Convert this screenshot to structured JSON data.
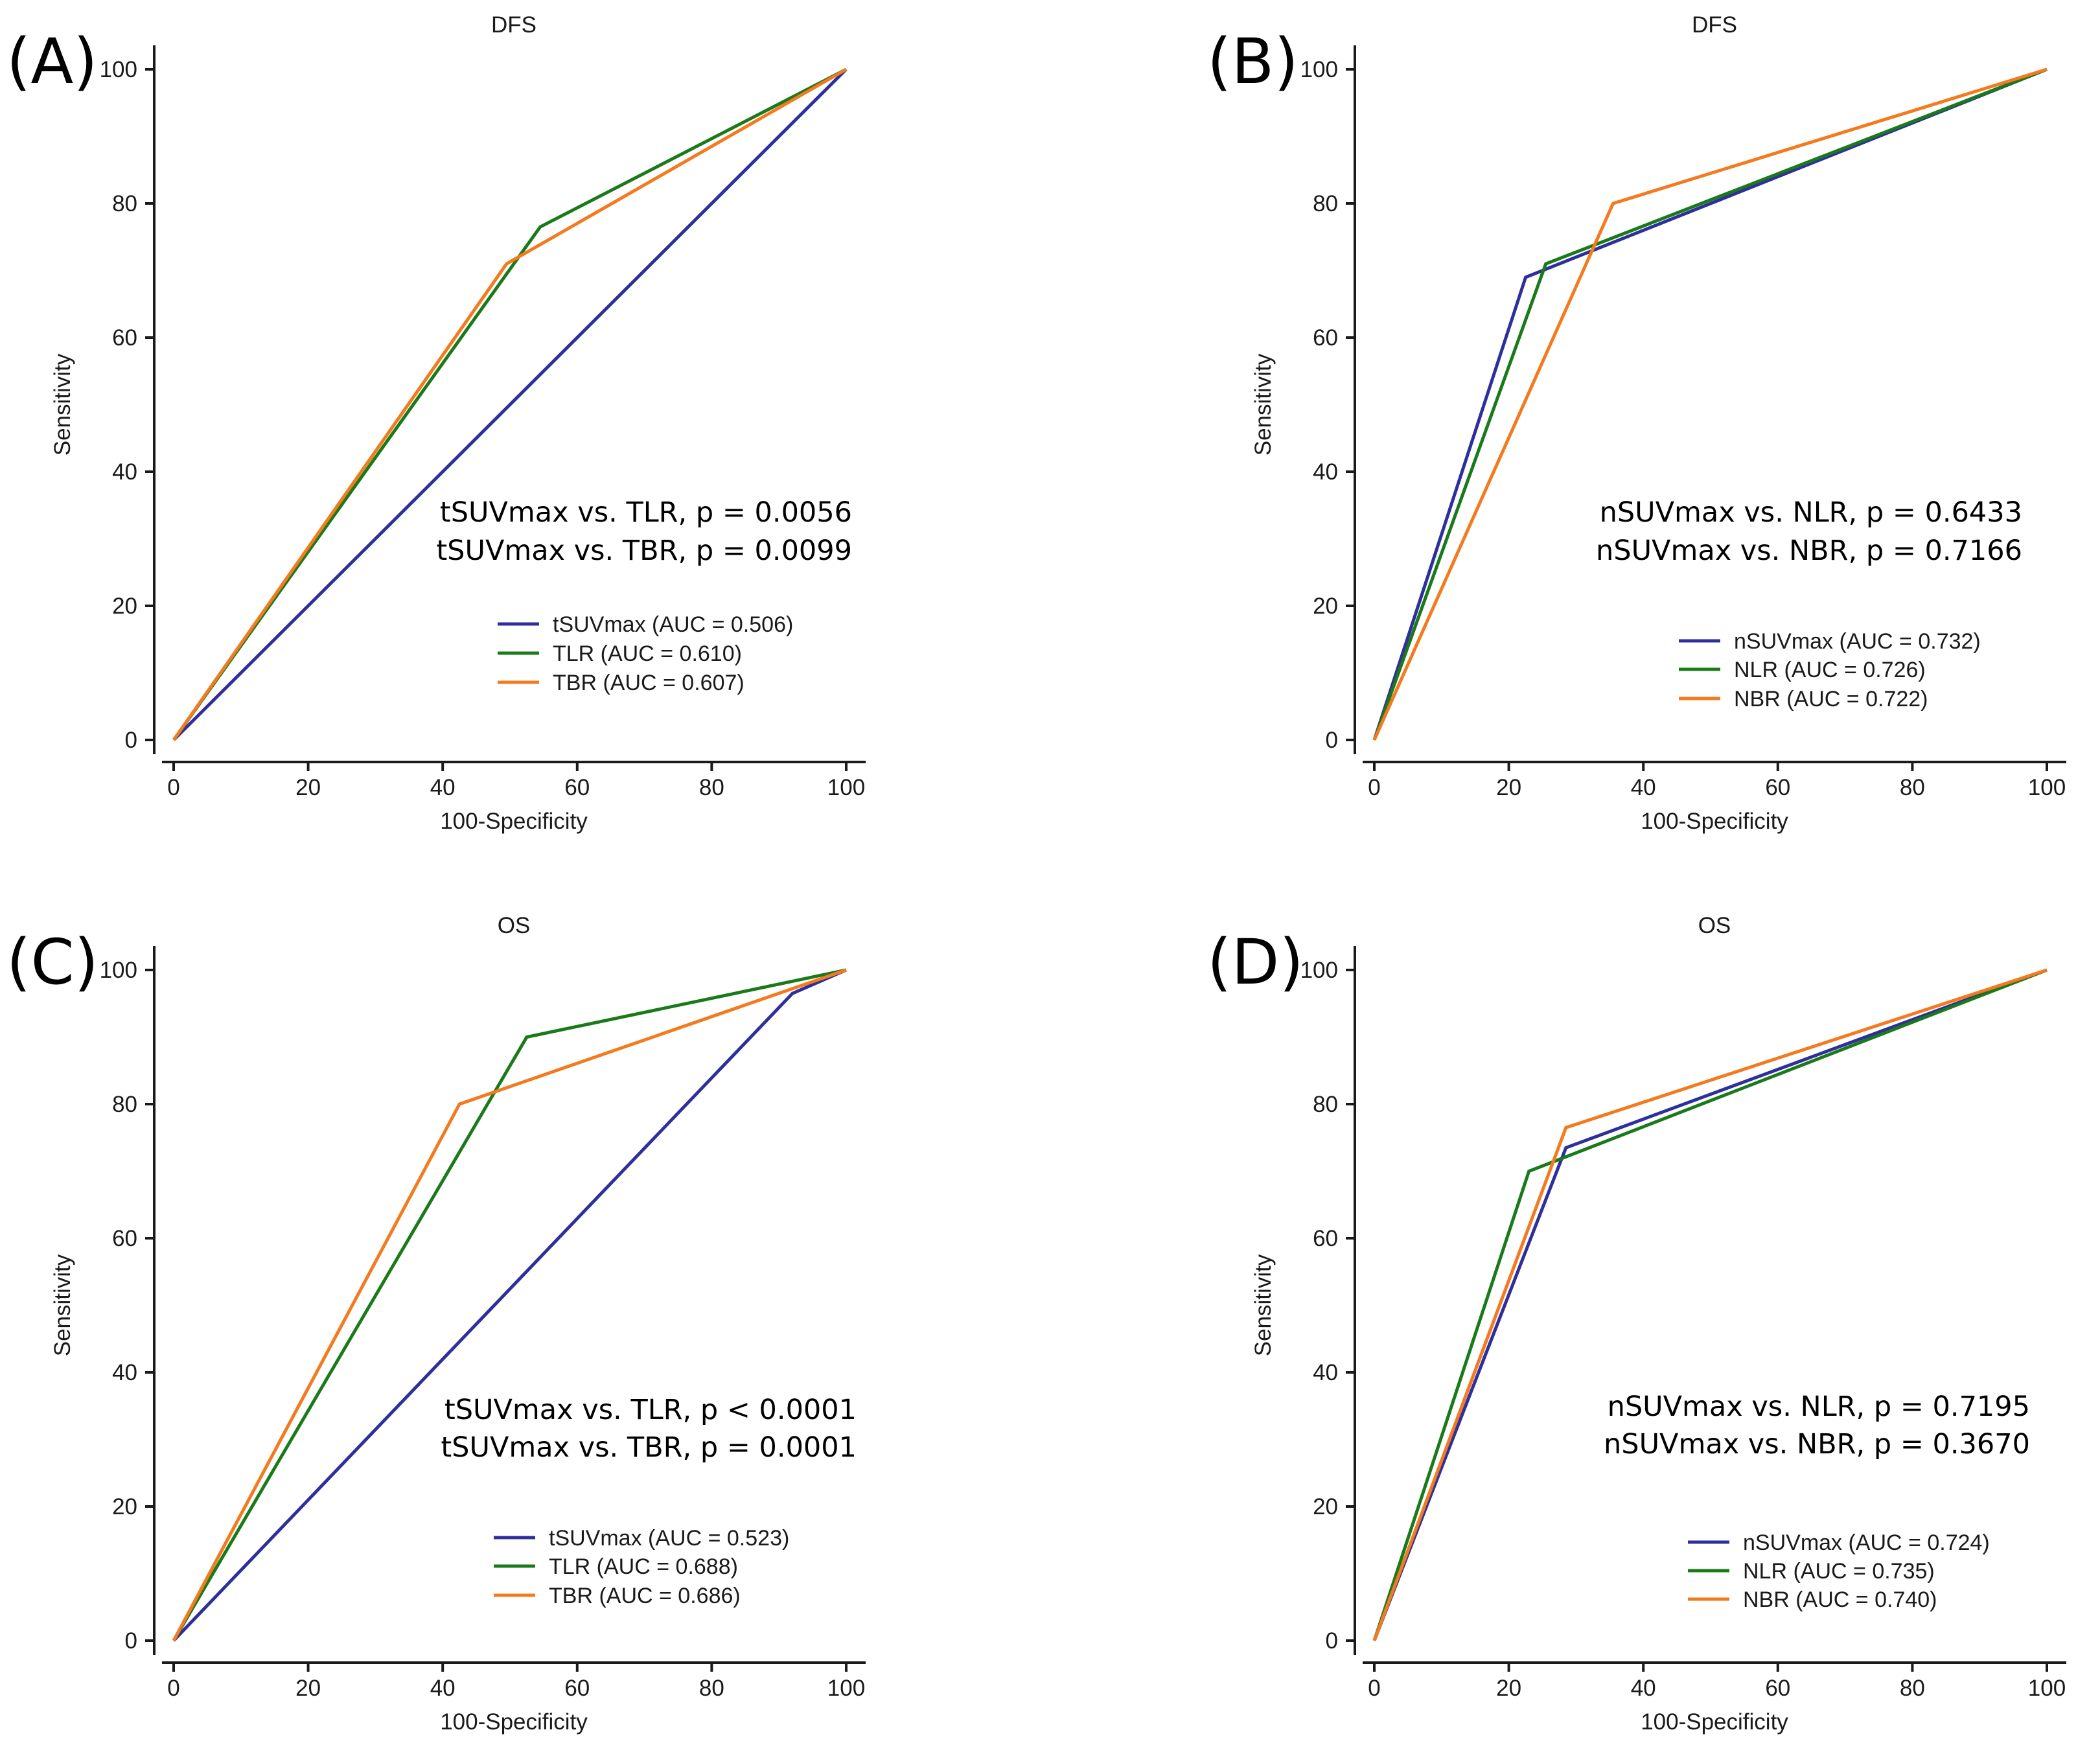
{
  "colors": {
    "blue": "#2f2f9c",
    "green": "#1a7a1a",
    "orange": "#f47a1f",
    "axis": "#1a1a1a"
  },
  "chart_data": [
    {
      "panel_label": "(A)",
      "type": "line",
      "title": "DFS",
      "xlabel": "100-Specificity",
      "ylabel": "Sensitivity",
      "xlim": [
        0,
        100
      ],
      "ylim": [
        0,
        100
      ],
      "xticks": [
        "0",
        "20",
        "40",
        "60",
        "80",
        "100"
      ],
      "yticks": [
        "0",
        "20",
        "40",
        "60",
        "80",
        "100"
      ],
      "grid": false,
      "legend_position": "lower-right",
      "series": [
        {
          "name": "tSUVmax",
          "legend": "tSUVmax (AUC = 0.506)",
          "auc": 0.506,
          "color_key": "blue",
          "x": [
            0,
            96.4,
            100
          ],
          "y": [
            0,
            96.4,
            100
          ]
        },
        {
          "name": "TLR",
          "legend": "TLR (AUC = 0.610)",
          "auc": 0.61,
          "color_key": "green",
          "x": [
            0,
            54.5,
            100
          ],
          "y": [
            0,
            76.5,
            100
          ]
        },
        {
          "name": "TBR",
          "legend": "TBR (AUC = 0.607)",
          "auc": 0.607,
          "color_key": "orange",
          "x": [
            0,
            49.5,
            100
          ],
          "y": [
            0,
            71,
            100
          ]
        }
      ],
      "annotations": [
        "tSUVmax vs. TLR, p = 0.0056",
        "tSUVmax vs. TBR, p = 0.0099"
      ]
    },
    {
      "panel_label": "(B)",
      "type": "line",
      "title": "DFS",
      "xlabel": "100-Specificity",
      "ylabel": "Sensitivity",
      "xlim": [
        0,
        100
      ],
      "ylim": [
        0,
        100
      ],
      "xticks": [
        "0",
        "20",
        "40",
        "60",
        "80",
        "100"
      ],
      "yticks": [
        "0",
        "20",
        "40",
        "60",
        "80",
        "100"
      ],
      "grid": false,
      "legend_position": "lower-right",
      "series": [
        {
          "name": "nSUVmax",
          "legend": "nSUVmax (AUC = 0.732)",
          "auc": 0.732,
          "color_key": "blue",
          "x": [
            0,
            22.5,
            100
          ],
          "y": [
            0,
            69,
            100
          ]
        },
        {
          "name": "NLR",
          "legend": "NLR (AUC = 0.726)",
          "auc": 0.726,
          "color_key": "green",
          "x": [
            0,
            25.5,
            100
          ],
          "y": [
            0,
            71,
            100
          ]
        },
        {
          "name": "NBR",
          "legend": "NBR (AUC = 0.722)",
          "auc": 0.722,
          "color_key": "orange",
          "x": [
            0,
            35.5,
            100
          ],
          "y": [
            0,
            80,
            100
          ]
        }
      ],
      "annotations": [
        "nSUVmax vs. NLR, p = 0.6433",
        "nSUVmax vs. NBR, p = 0.7166"
      ]
    },
    {
      "panel_label": "(C)",
      "type": "line",
      "title": "OS",
      "xlabel": "100-Specificity",
      "ylabel": "Sensitivity",
      "xlim": [
        0,
        100
      ],
      "ylim": [
        0,
        100
      ],
      "xticks": [
        "0",
        "20",
        "40",
        "60",
        "80",
        "100"
      ],
      "yticks": [
        "0",
        "20",
        "40",
        "60",
        "80",
        "100"
      ],
      "grid": false,
      "legend_position": "lower-right",
      "series": [
        {
          "name": "tSUVmax",
          "legend": "tSUVmax (AUC = 0.523)",
          "auc": 0.523,
          "color_key": "blue",
          "x": [
            0,
            92,
            100
          ],
          "y": [
            0,
            96.5,
            100
          ]
        },
        {
          "name": "TLR",
          "legend": "TLR (AUC = 0.688)",
          "auc": 0.688,
          "color_key": "green",
          "x": [
            0,
            52.5,
            100
          ],
          "y": [
            0,
            90,
            100
          ]
        },
        {
          "name": "TBR",
          "legend": "TBR (AUC = 0.686)",
          "auc": 0.686,
          "color_key": "orange",
          "x": [
            0,
            42.5,
            100
          ],
          "y": [
            0,
            80,
            100
          ]
        }
      ],
      "annotations": [
        "tSUVmax vs. TLR, p < 0.0001",
        "tSUVmax vs. TBR, p = 0.0001"
      ]
    },
    {
      "panel_label": "(D)",
      "type": "line",
      "title": "OS",
      "xlabel": "100-Specificity",
      "ylabel": "Sensitivity",
      "xlim": [
        0,
        100
      ],
      "ylim": [
        0,
        100
      ],
      "xticks": [
        "0",
        "20",
        "40",
        "60",
        "80",
        "100"
      ],
      "yticks": [
        "0",
        "20",
        "40",
        "60",
        "80",
        "100"
      ],
      "grid": false,
      "legend_position": "lower-right",
      "series": [
        {
          "name": "nSUVmax",
          "legend": "nSUVmax (AUC = 0.724)",
          "auc": 0.724,
          "color_key": "blue",
          "x": [
            0,
            28.5,
            100
          ],
          "y": [
            0,
            73.5,
            100
          ]
        },
        {
          "name": "NLR",
          "legend": "NLR (AUC = 0.735)",
          "auc": 0.735,
          "color_key": "green",
          "x": [
            0,
            23,
            100
          ],
          "y": [
            0,
            70,
            100
          ]
        },
        {
          "name": "NBR",
          "legend": "NBR (AUC = 0.740)",
          "auc": 0.74,
          "color_key": "orange",
          "x": [
            0,
            28.5,
            100
          ],
          "y": [
            0,
            76.5,
            100
          ]
        }
      ],
      "annotations": [
        "nSUVmax vs. NLR, p = 0.7195",
        "nSUVmax vs. NBR, p = 0.3670"
      ]
    }
  ]
}
